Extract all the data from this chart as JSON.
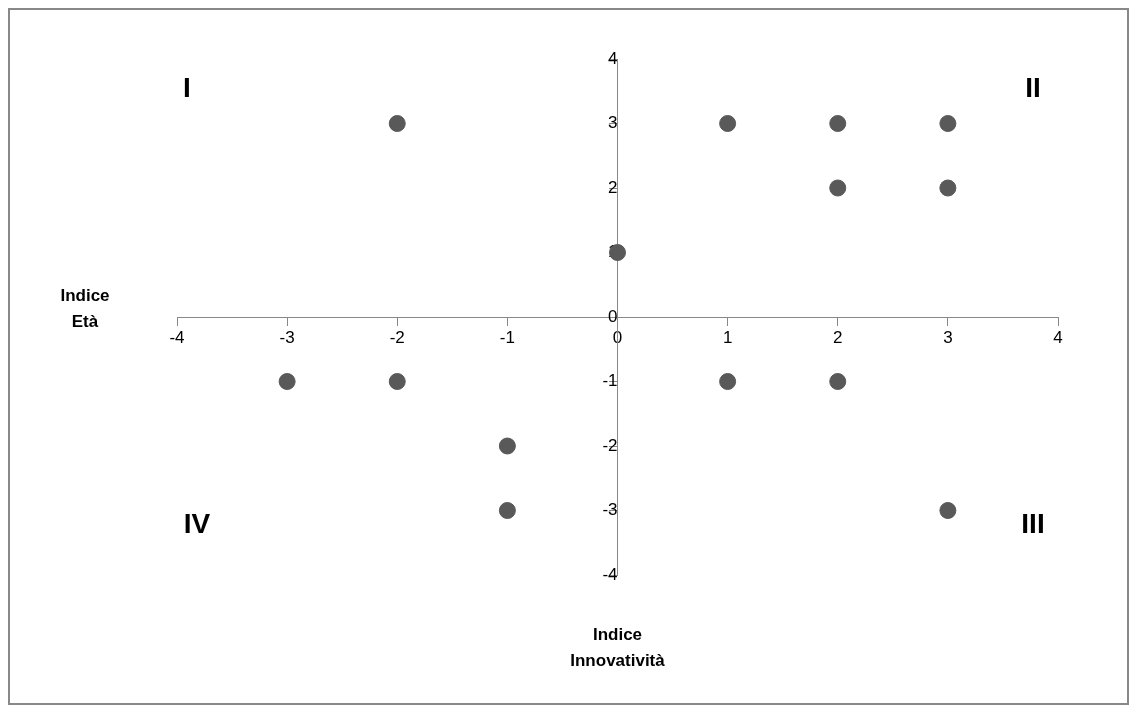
{
  "chart_data": {
    "type": "scatter",
    "xlabel": "Indice Innovatività",
    "ylabel": "Indice Età",
    "x": [
      -2,
      1,
      2,
      3,
      2,
      3,
      0,
      -3,
      -2,
      1,
      2,
      -1,
      -1,
      3
    ],
    "values": [
      3,
      3,
      3,
      3,
      2,
      2,
      1,
      -1,
      -1,
      -1,
      -1,
      -2,
      -3,
      -3
    ],
    "color": "#595959",
    "marker": "circle",
    "xlim": [
      -4,
      4
    ],
    "xticks": [
      -4,
      -3,
      -2,
      -1,
      0,
      1,
      2,
      3,
      4
    ],
    "ylim": [
      -4,
      4
    ],
    "yticks": [
      -4,
      -3,
      -2,
      -1,
      0,
      1,
      2,
      3,
      4
    ],
    "grid": false,
    "legend": false,
    "annotations": [
      "I",
      "II",
      "III",
      "IV"
    ]
  }
}
